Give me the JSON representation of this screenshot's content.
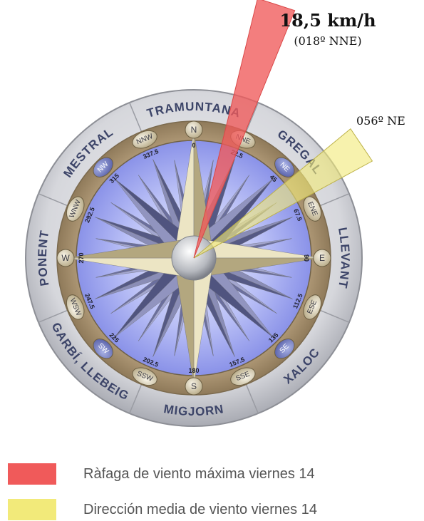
{
  "gust": {
    "speed_label": "18,5 km/h",
    "direction_label": "(018º NNE)",
    "direction_deg": 18,
    "color": "#f05a5a"
  },
  "mean": {
    "direction_label": "056º NE",
    "direction_deg": 56,
    "color": "#f2ea7a"
  },
  "compass": {
    "wind_names": [
      {
        "label": "TRAMUNTANA",
        "deg": 0
      },
      {
        "label": "GREGAL",
        "deg": 45
      },
      {
        "label": "LLEVANT",
        "deg": 90
      },
      {
        "label": "XALOC",
        "deg": 135
      },
      {
        "label": "MIGJORN",
        "deg": 180
      },
      {
        "label": "GARBÍ, LLEBEIG",
        "deg": 225
      },
      {
        "label": "PONENT",
        "deg": 270
      },
      {
        "label": "MESTRAL",
        "deg": 315
      }
    ],
    "points": [
      {
        "label": "N",
        "deg": 0
      },
      {
        "label": "NNE",
        "deg": 22.5
      },
      {
        "label": "NE",
        "deg": 45
      },
      {
        "label": "ENE",
        "deg": 67.5
      },
      {
        "label": "E",
        "deg": 90
      },
      {
        "label": "ESE",
        "deg": 112.5
      },
      {
        "label": "SE",
        "deg": 135
      },
      {
        "label": "SSE",
        "deg": 157.5
      },
      {
        "label": "S",
        "deg": 180
      },
      {
        "label": "SSW",
        "deg": 202.5
      },
      {
        "label": "SW",
        "deg": 225
      },
      {
        "label": "WSW",
        "deg": 247.5
      },
      {
        "label": "W",
        "deg": 270
      },
      {
        "label": "WNW",
        "deg": 292.5
      },
      {
        "label": "NW",
        "deg": 315
      },
      {
        "label": "NNW",
        "deg": 337.5
      }
    ],
    "degree_labels": [
      "0",
      "22.5",
      "45",
      "67.5",
      "90",
      "112.5",
      "135",
      "157.5",
      "180",
      "202.5",
      "225",
      "247.5",
      "270",
      "292.5",
      "315",
      "337.5"
    ]
  },
  "legend": [
    {
      "label": "Ràfaga de viento máxima viernes 14",
      "color": "#f05a5a"
    },
    {
      "label": "Dirección media de viento viernes 14",
      "color": "#f2ea7a"
    }
  ]
}
